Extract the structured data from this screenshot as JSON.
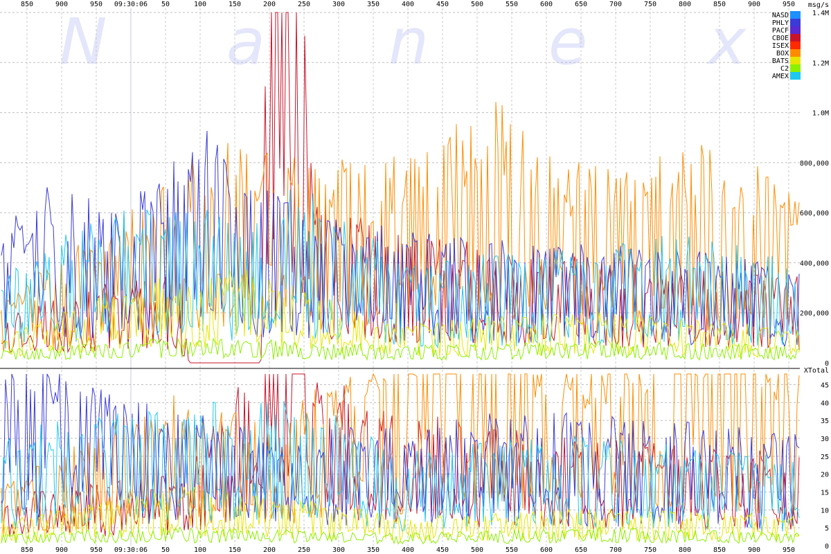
{
  "watermark": [
    "N",
    "a",
    "n",
    "e",
    "x"
  ],
  "x_tick_labels": [
    "850",
    "900",
    "950",
    "09:30:06",
    "50",
    "100",
    "150",
    "200",
    "250",
    "300",
    "350",
    "400",
    "450",
    "500",
    "550",
    "600",
    "650",
    "700",
    "750",
    "800",
    "850",
    "900",
    "950"
  ],
  "legend": [
    {
      "name": "NASD",
      "color": "#1e90ff"
    },
    {
      "name": "PHLY",
      "color": "#3b3bd8"
    },
    {
      "name": "PACF",
      "color": "#5a2ad0"
    },
    {
      "name": "CBOE",
      "color": "#c8142a"
    },
    {
      "name": "ISEX",
      "color": "#ff2a00"
    },
    {
      "name": "BOX",
      "color": "#ff8c00"
    },
    {
      "name": "BATS",
      "color": "#e6e600"
    },
    {
      "name": "C2",
      "color": "#8cf000"
    },
    {
      "name": "AMEX",
      "color": "#1ec8f0"
    }
  ],
  "chart_data": [
    {
      "type": "line",
      "ylabel": "msg/s",
      "ylim": [
        0,
        1400000
      ],
      "y_tick_labels": [
        "0",
        "200,000",
        "400,000",
        "600,000",
        "800,000",
        "1.0M",
        "1.2M",
        "1.4M"
      ],
      "y_tick_values": [
        0,
        200000,
        400000,
        600000,
        800000,
        1000000,
        1200000,
        1400000
      ],
      "xlim": [
        830,
        1965
      ],
      "series": [
        {
          "name": "CBOE",
          "color": "#c8142a",
          "points": [
            [
              830,
              120000
            ],
            [
              900,
              150000
            ],
            [
              980,
              180000
            ],
            [
              1080,
              200000
            ],
            [
              1100,
              0
            ],
            [
              1200,
              0
            ],
            [
              1210,
              1000000
            ],
            [
              1230,
              1250000
            ],
            [
              1250,
              1320000
            ],
            [
              1260,
              800000
            ],
            [
              1280,
              380000
            ],
            [
              1400,
              300000
            ],
            [
              1600,
              250000
            ],
            [
              1800,
              220000
            ],
            [
              1965,
              200000
            ]
          ]
        },
        {
          "name": "BOX",
          "color": "#ff8c00",
          "points": [
            [
              830,
              150000
            ],
            [
              1050,
              400000
            ],
            [
              1120,
              520000
            ],
            [
              1240,
              500000
            ],
            [
              1360,
              450000
            ],
            [
              1450,
              520000
            ],
            [
              1530,
              620000
            ],
            [
              1640,
              480000
            ],
            [
              1860,
              520000
            ],
            [
              1965,
              380000
            ]
          ]
        },
        {
          "name": "PHLY",
          "color": "#3b3bd8",
          "points": [
            [
              830,
              300000
            ],
            [
              900,
              420000
            ],
            [
              1000,
              350000
            ],
            [
              1130,
              560000
            ],
            [
              1200,
              400000
            ],
            [
              1400,
              300000
            ],
            [
              1600,
              280000
            ],
            [
              1800,
              260000
            ],
            [
              1965,
              220000
            ]
          ]
        },
        {
          "name": "AMEX",
          "color": "#1ec8f0",
          "points": [
            [
              830,
              200000
            ],
            [
              1000,
              380000
            ],
            [
              1200,
              330000
            ],
            [
              1250,
              420000
            ],
            [
              1400,
              240000
            ],
            [
              1600,
              260000
            ],
            [
              1800,
              300000
            ],
            [
              1965,
              240000
            ]
          ]
        },
        {
          "name": "BATS",
          "color": "#e6e600",
          "points": [
            [
              830,
              60000
            ],
            [
              1050,
              200000
            ],
            [
              1200,
              220000
            ],
            [
              1400,
              90000
            ],
            [
              1650,
              120000
            ],
            [
              1965,
              80000
            ]
          ]
        },
        {
          "name": "C2",
          "color": "#8cf000",
          "points": [
            [
              830,
              30000
            ],
            [
              1100,
              60000
            ],
            [
              1400,
              40000
            ],
            [
              1700,
              50000
            ],
            [
              1965,
              40000
            ]
          ]
        }
      ]
    },
    {
      "type": "line",
      "ylabel": "XTotal",
      "ylim": [
        0,
        48
      ],
      "y_tick_labels": [
        "0",
        "5",
        "10",
        "15",
        "20",
        "25",
        "30",
        "35",
        "40",
        "45"
      ],
      "y_tick_values": [
        0,
        5,
        10,
        15,
        20,
        25,
        30,
        35,
        40,
        45
      ],
      "xlim": [
        830,
        1965
      ],
      "series": [
        {
          "name": "CBOE",
          "color": "#c8142a",
          "points": [
            [
              830,
              8
            ],
            [
              1100,
              12
            ],
            [
              1210,
              40
            ],
            [
              1250,
              45
            ],
            [
              1270,
              28
            ],
            [
              1400,
              22
            ],
            [
              1600,
              18
            ],
            [
              1800,
              16
            ],
            [
              1965,
              15
            ]
          ]
        },
        {
          "name": "BOX",
          "color": "#ff8c00",
          "points": [
            [
              830,
              10
            ],
            [
              1060,
              25
            ],
            [
              1200,
              20
            ],
            [
              1350,
              30
            ],
            [
              1450,
              40
            ],
            [
              1530,
              38
            ],
            [
              1650,
              30
            ],
            [
              1860,
              40
            ],
            [
              1965,
              30
            ]
          ]
        },
        {
          "name": "PHLY",
          "color": "#3b3bd8",
          "points": [
            [
              830,
              28
            ],
            [
              900,
              32
            ],
            [
              1000,
              25
            ],
            [
              1200,
              18
            ],
            [
              1400,
              20
            ],
            [
              1600,
              22
            ],
            [
              1800,
              20
            ],
            [
              1965,
              18
            ]
          ]
        },
        {
          "name": "AMEX",
          "color": "#1ec8f0",
          "points": [
            [
              830,
              18
            ],
            [
              1000,
              22
            ],
            [
              1250,
              25
            ],
            [
              1400,
              15
            ],
            [
              1600,
              18
            ],
            [
              1800,
              16
            ],
            [
              1965,
              14
            ]
          ]
        },
        {
          "name": "BATS",
          "color": "#e6e600",
          "points": [
            [
              830,
              4
            ],
            [
              1100,
              10
            ],
            [
              1400,
              5
            ],
            [
              1700,
              6
            ],
            [
              1965,
              5
            ]
          ]
        },
        {
          "name": "C2",
          "color": "#8cf000",
          "points": [
            [
              830,
              2
            ],
            [
              1100,
              3
            ],
            [
              1400,
              2
            ],
            [
              1700,
              3
            ],
            [
              1965,
              2
            ]
          ]
        }
      ]
    }
  ]
}
